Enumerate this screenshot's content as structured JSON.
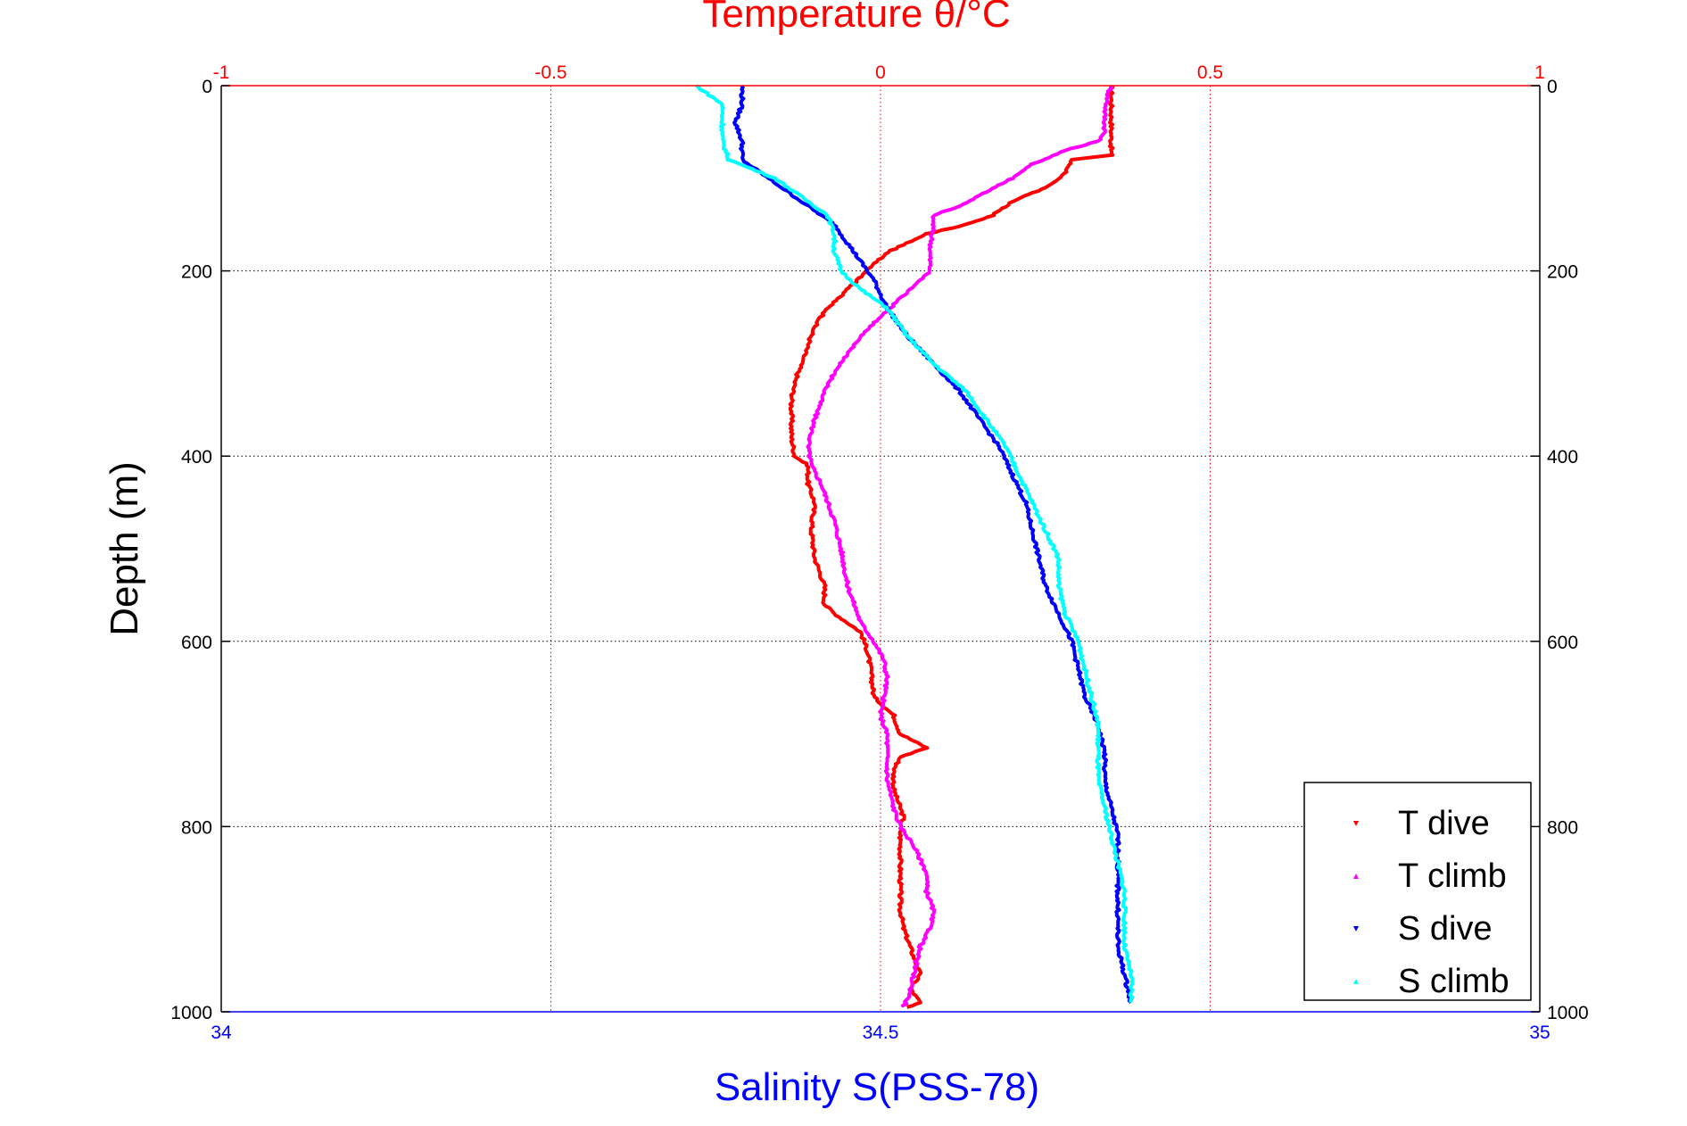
{
  "chart_data": {
    "type": "line",
    "title": "Temperature θ/°C",
    "xlabel": "Salinity S(PSS-78)",
    "ylabel": "Depth (m)",
    "ylim": [
      1000,
      0
    ],
    "y_inverted": true,
    "grid": true,
    "legend_position": "bottom-right",
    "top_axis": {
      "label": "Temperature θ/°C",
      "range": [
        -1,
        1
      ],
      "ticks": [
        "-1",
        "-0.5",
        "0",
        "0.5",
        "1"
      ],
      "color": "#ff0000"
    },
    "bottom_axis": {
      "label": "Salinity S(PSS-78)",
      "range": [
        34,
        35
      ],
      "ticks": [
        "34",
        "34.5",
        "35"
      ],
      "color": "#0000ff"
    },
    "left_axis": {
      "ticks": [
        "0",
        "200",
        "400",
        "600",
        "800",
        "1000"
      ]
    },
    "right_axis": {
      "ticks": [
        "0",
        "200",
        "400",
        "600",
        "800",
        "1000"
      ]
    },
    "series": [
      {
        "name": "T dive",
        "axis": "temperature",
        "color": "#ff0000",
        "marker": "down-triangle",
        "points": [
          [
            0,
            0.35
          ],
          [
            10,
            0.35
          ],
          [
            50,
            0.35
          ],
          [
            75,
            0.35
          ],
          [
            80,
            0.29
          ],
          [
            95,
            0.28
          ],
          [
            110,
            0.25
          ],
          [
            125,
            0.2
          ],
          [
            140,
            0.17
          ],
          [
            150,
            0.13
          ],
          [
            160,
            0.07
          ],
          [
            170,
            0.04
          ],
          [
            180,
            0.01
          ],
          [
            200,
            -0.02
          ],
          [
            220,
            -0.05
          ],
          [
            240,
            -0.08
          ],
          [
            260,
            -0.1
          ],
          [
            280,
            -0.11
          ],
          [
            300,
            -0.12
          ],
          [
            320,
            -0.13
          ],
          [
            340,
            -0.135
          ],
          [
            360,
            -0.135
          ],
          [
            380,
            -0.135
          ],
          [
            400,
            -0.13
          ],
          [
            410,
            -0.11
          ],
          [
            430,
            -0.11
          ],
          [
            450,
            -0.1
          ],
          [
            480,
            -0.105
          ],
          [
            510,
            -0.1
          ],
          [
            540,
            -0.085
          ],
          [
            560,
            -0.085
          ],
          [
            570,
            -0.07
          ],
          [
            590,
            -0.03
          ],
          [
            610,
            -0.02
          ],
          [
            630,
            -0.015
          ],
          [
            660,
            -0.01
          ],
          [
            680,
            0.02
          ],
          [
            700,
            0.03
          ],
          [
            715,
            0.07
          ],
          [
            725,
            0.03
          ],
          [
            740,
            0.02
          ],
          [
            760,
            0.02
          ],
          [
            790,
            0.035
          ],
          [
            800,
            0.03
          ],
          [
            830,
            0.03
          ],
          [
            860,
            0.03
          ],
          [
            890,
            0.03
          ],
          [
            910,
            0.035
          ],
          [
            940,
            0.05
          ],
          [
            960,
            0.06
          ],
          [
            975,
            0.045
          ],
          [
            990,
            0.06
          ],
          [
            995,
            0.04
          ]
        ]
      },
      {
        "name": "T climb",
        "axis": "temperature",
        "color": "#ff00ff",
        "marker": "up-triangle",
        "points": [
          [
            0,
            0.35
          ],
          [
            10,
            0.345
          ],
          [
            30,
            0.34
          ],
          [
            50,
            0.34
          ],
          [
            60,
            0.33
          ],
          [
            70,
            0.28
          ],
          [
            85,
            0.23
          ],
          [
            100,
            0.2
          ],
          [
            115,
            0.16
          ],
          [
            130,
            0.12
          ],
          [
            140,
            0.08
          ],
          [
            150,
            0.08
          ],
          [
            180,
            0.075
          ],
          [
            200,
            0.075
          ],
          [
            210,
            0.06
          ],
          [
            230,
            0.03
          ],
          [
            250,
            0.0
          ],
          [
            270,
            -0.03
          ],
          [
            290,
            -0.05
          ],
          [
            310,
            -0.07
          ],
          [
            330,
            -0.085
          ],
          [
            360,
            -0.1
          ],
          [
            390,
            -0.11
          ],
          [
            410,
            -0.105
          ],
          [
            430,
            -0.09
          ],
          [
            450,
            -0.08
          ],
          [
            470,
            -0.07
          ],
          [
            500,
            -0.06
          ],
          [
            520,
            -0.055
          ],
          [
            540,
            -0.05
          ],
          [
            560,
            -0.04
          ],
          [
            580,
            -0.03
          ],
          [
            600,
            -0.01
          ],
          [
            620,
            0.005
          ],
          [
            640,
            0.01
          ],
          [
            660,
            0.005
          ],
          [
            680,
            0.0
          ],
          [
            700,
            0.01
          ],
          [
            720,
            0.01
          ],
          [
            750,
            0.01
          ],
          [
            780,
            0.02
          ],
          [
            800,
            0.03
          ],
          [
            820,
            0.05
          ],
          [
            850,
            0.07
          ],
          [
            870,
            0.07
          ],
          [
            890,
            0.08
          ],
          [
            910,
            0.075
          ],
          [
            930,
            0.06
          ],
          [
            960,
            0.05
          ],
          [
            980,
            0.045
          ],
          [
            995,
            0.035
          ]
        ]
      },
      {
        "name": "S dive",
        "axis": "salinity",
        "color": "#0000ff",
        "marker": "down-triangle",
        "points": [
          [
            0,
            34.395
          ],
          [
            20,
            34.395
          ],
          [
            40,
            34.39
          ],
          [
            60,
            34.395
          ],
          [
            80,
            34.395
          ],
          [
            90,
            34.405
          ],
          [
            110,
            34.425
          ],
          [
            130,
            34.445
          ],
          [
            150,
            34.465
          ],
          [
            170,
            34.475
          ],
          [
            190,
            34.485
          ],
          [
            210,
            34.495
          ],
          [
            240,
            34.505
          ],
          [
            270,
            34.52
          ],
          [
            300,
            34.54
          ],
          [
            330,
            34.56
          ],
          [
            360,
            34.575
          ],
          [
            390,
            34.59
          ],
          [
            420,
            34.6
          ],
          [
            450,
            34.61
          ],
          [
            480,
            34.615
          ],
          [
            510,
            34.62
          ],
          [
            540,
            34.625
          ],
          [
            570,
            34.635
          ],
          [
            600,
            34.645
          ],
          [
            630,
            34.65
          ],
          [
            660,
            34.655
          ],
          [
            690,
            34.665
          ],
          [
            720,
            34.67
          ],
          [
            750,
            34.67
          ],
          [
            780,
            34.675
          ],
          [
            810,
            34.68
          ],
          [
            840,
            34.68
          ],
          [
            870,
            34.68
          ],
          [
            900,
            34.68
          ],
          [
            930,
            34.68
          ],
          [
            960,
            34.685
          ],
          [
            990,
            34.69
          ]
        ]
      },
      {
        "name": "S climb",
        "axis": "salinity",
        "color": "#00ffff",
        "marker": "up-triangle",
        "points": [
          [
            0,
            34.36
          ],
          [
            20,
            34.38
          ],
          [
            40,
            34.38
          ],
          [
            60,
            34.38
          ],
          [
            80,
            34.385
          ],
          [
            100,
            34.42
          ],
          [
            120,
            34.44
          ],
          [
            140,
            34.46
          ],
          [
            160,
            34.465
          ],
          [
            180,
            34.465
          ],
          [
            200,
            34.47
          ],
          [
            220,
            34.485
          ],
          [
            240,
            34.505
          ],
          [
            270,
            34.52
          ],
          [
            300,
            34.54
          ],
          [
            330,
            34.565
          ],
          [
            360,
            34.58
          ],
          [
            390,
            34.595
          ],
          [
            420,
            34.605
          ],
          [
            450,
            34.615
          ],
          [
            480,
            34.625
          ],
          [
            510,
            34.635
          ],
          [
            540,
            34.635
          ],
          [
            570,
            34.64
          ],
          [
            600,
            34.65
          ],
          [
            630,
            34.655
          ],
          [
            660,
            34.66
          ],
          [
            690,
            34.665
          ],
          [
            720,
            34.665
          ],
          [
            750,
            34.665
          ],
          [
            780,
            34.67
          ],
          [
            810,
            34.675
          ],
          [
            840,
            34.68
          ],
          [
            870,
            34.685
          ],
          [
            900,
            34.685
          ],
          [
            930,
            34.685
          ],
          [
            960,
            34.69
          ],
          [
            990,
            34.69
          ]
        ]
      }
    ]
  }
}
